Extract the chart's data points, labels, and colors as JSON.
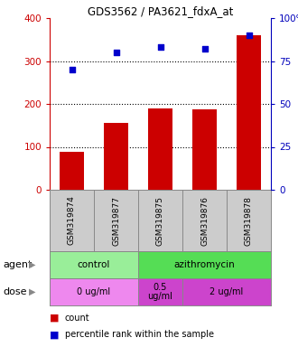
{
  "title": "GDS3562 / PA3621_fdxA_at",
  "samples": [
    "GSM319874",
    "GSM319877",
    "GSM319875",
    "GSM319876",
    "GSM319878"
  ],
  "counts": [
    88,
    155,
    190,
    188,
    360
  ],
  "percentiles": [
    70,
    80,
    83,
    82,
    90
  ],
  "ylim_left": [
    0,
    400
  ],
  "ylim_right": [
    0,
    100
  ],
  "yticks_left": [
    0,
    100,
    200,
    300,
    400
  ],
  "yticks_right": [
    0,
    25,
    50,
    75,
    100
  ],
  "ytick_labels_right": [
    "0",
    "25",
    "50",
    "75",
    "100%"
  ],
  "bar_color": "#cc0000",
  "dot_color": "#0000cc",
  "agent_row": [
    {
      "label": "control",
      "span": [
        0,
        2
      ],
      "color": "#99ee99"
    },
    {
      "label": "azithromycin",
      "span": [
        2,
        5
      ],
      "color": "#55dd55"
    }
  ],
  "dose_row": [
    {
      "label": "0 ug/ml",
      "span": [
        0,
        2
      ],
      "color": "#ee88ee"
    },
    {
      "label": "0.5\nug/ml",
      "span": [
        2,
        3
      ],
      "color": "#cc44cc"
    },
    {
      "label": "2 ug/ml",
      "span": [
        3,
        5
      ],
      "color": "#cc44cc"
    }
  ],
  "agent_label": "agent",
  "dose_label": "dose",
  "legend_count": "count",
  "legend_pct": "percentile rank within the sample",
  "tick_color_left": "#cc0000",
  "tick_color_right": "#0000bb",
  "bg_color": "#ffffff",
  "xlabel_bg": "#cccccc",
  "grid_yticks": [
    100,
    200,
    300
  ]
}
